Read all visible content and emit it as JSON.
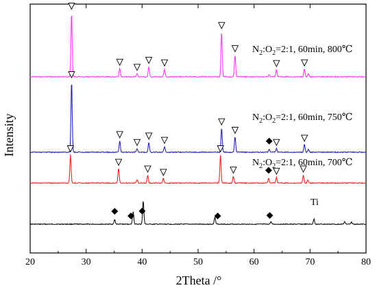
{
  "chart_data": {
    "type": "line",
    "xlabel": "2Theta /°",
    "ylabel": "Intensity",
    "xlim": [
      20,
      80
    ],
    "x_ticks": [
      20,
      30,
      40,
      50,
      60,
      70,
      80
    ],
    "y_ticks_shown": false,
    "colors": {
      "800": "#ff33ff",
      "750": "#2222bb",
      "700": "#ee2222",
      "ti": "#111111"
    },
    "series": [
      {
        "key": "800",
        "name_parts": [
          "N",
          "2",
          ":O",
          "2",
          "=2:1, 60min, 800℃"
        ],
        "peaks": [
          {
            "x": 27.4,
            "h": 1.0
          },
          {
            "x": 36.0,
            "h": 0.13
          },
          {
            "x": 39.1,
            "h": 0.05
          },
          {
            "x": 41.2,
            "h": 0.16
          },
          {
            "x": 44.0,
            "h": 0.12
          },
          {
            "x": 54.2,
            "h": 0.7
          },
          {
            "x": 56.6,
            "h": 0.34
          },
          {
            "x": 62.7,
            "h": 0.03
          },
          {
            "x": 64.0,
            "h": 0.11
          },
          {
            "x": 69.0,
            "h": 0.12
          },
          {
            "x": 69.7,
            "h": 0.05
          }
        ],
        "tri_markers": [
          27.4,
          36.0,
          39.1,
          41.2,
          44.0,
          54.2,
          56.6,
          64.0,
          69.0
        ],
        "diamond_markers": []
      },
      {
        "key": "750",
        "name_parts": [
          "N",
          "2",
          ":O",
          "2",
          "=2:1, 60min, 750℃"
        ],
        "peaks": [
          {
            "x": 27.4,
            "h": 1.0
          },
          {
            "x": 36.0,
            "h": 0.16
          },
          {
            "x": 39.1,
            "h": 0.05
          },
          {
            "x": 41.2,
            "h": 0.14
          },
          {
            "x": 44.0,
            "h": 0.08
          },
          {
            "x": 54.2,
            "h": 0.34
          },
          {
            "x": 56.6,
            "h": 0.22
          },
          {
            "x": 62.7,
            "h": 0.04
          },
          {
            "x": 64.0,
            "h": 0.05
          },
          {
            "x": 69.0,
            "h": 0.11
          },
          {
            "x": 69.7,
            "h": 0.04
          }
        ],
        "tri_markers": [
          27.4,
          36.0,
          39.1,
          41.2,
          44.0,
          54.2,
          56.6,
          64.0,
          69.0
        ],
        "diamond_markers": [
          62.7
        ]
      },
      {
        "key": "700",
        "name_parts": [
          "N",
          "2",
          ":O",
          "2",
          "=2:1, 60min, 700℃"
        ],
        "peaks": [
          {
            "x": 27.2,
            "h": 1.0
          },
          {
            "x": 35.8,
            "h": 0.52
          },
          {
            "x": 39.1,
            "h": 0.12
          },
          {
            "x": 41.0,
            "h": 0.28
          },
          {
            "x": 43.8,
            "h": 0.16
          },
          {
            "x": 54.0,
            "h": 1.0
          },
          {
            "x": 56.3,
            "h": 0.24
          },
          {
            "x": 62.6,
            "h": 0.16
          },
          {
            "x": 64.0,
            "h": 0.2
          },
          {
            "x": 68.8,
            "h": 0.28
          },
          {
            "x": 69.6,
            "h": 0.12
          }
        ],
        "tri_markers": [
          27.2,
          35.8,
          41.0,
          43.8,
          54.0,
          56.3,
          64.0,
          68.8
        ],
        "diamond_markers": [
          62.6
        ]
      },
      {
        "key": "ti",
        "name_parts": [
          "Ti"
        ],
        "peaks": [
          {
            "x": 35.1,
            "h": 0.2
          },
          {
            "x": 38.4,
            "h": 0.55
          },
          {
            "x": 40.2,
            "h": 1.0
          },
          {
            "x": 53.0,
            "h": 0.31
          },
          {
            "x": 63.0,
            "h": 0.1
          },
          {
            "x": 70.7,
            "h": 0.22
          },
          {
            "x": 76.2,
            "h": 0.11
          },
          {
            "x": 77.4,
            "h": 0.09
          }
        ],
        "tri_markers": [],
        "diamond_markers": [
          35.1,
          38.0,
          40.0,
          53.5,
          62.8
        ]
      }
    ]
  }
}
